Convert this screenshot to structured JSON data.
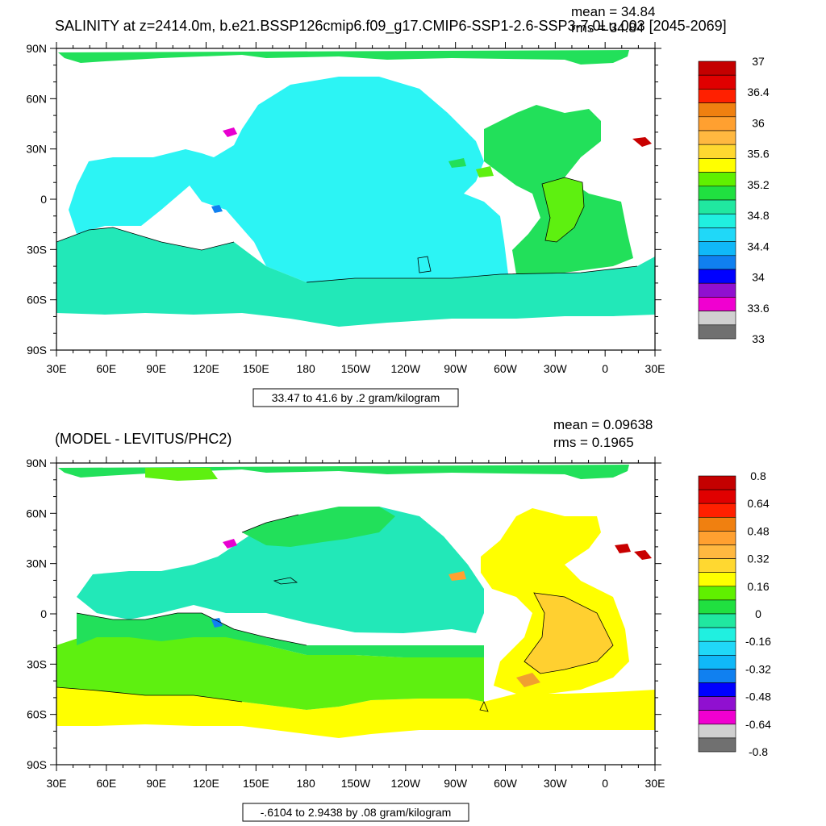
{
  "panels": [
    {
      "title": "SALINITY at z=2414.0m, b.e21.BSSP126cmip6.f09_g17.CMIP6-SSP1-2.6-SSP3-7.0Lu.003 [2045-2069]",
      "mean_label": "mean = 34.84",
      "rms_label": "rms = 34.84",
      "contour_info": "33.47 to 41.6 by .2 gram/kilogram",
      "x_ticks": [
        "30E",
        "60E",
        "90E",
        "120E",
        "150E",
        "180",
        "150W",
        "120W",
        "90W",
        "60W",
        "30W",
        "0",
        "30E"
      ],
      "y_ticks": [
        "90N",
        "60N",
        "30N",
        "0",
        "30S",
        "60S",
        "90S"
      ],
      "colorbar": {
        "labels": [
          "37",
          "36.4",
          "36",
          "35.6",
          "35.2",
          "34.8",
          "34.4",
          "34",
          "33.6",
          "33"
        ],
        "colors": [
          "#c40000",
          "#e00000",
          "#ff2000",
          "#f08010",
          "#ffa030",
          "#ffb840",
          "#ffd830",
          "#ffff00",
          "#60f000",
          "#20e040",
          "#20e8a0",
          "#20f0e0",
          "#20d8f8",
          "#10b8f8",
          "#1080f0",
          "#0000ff",
          "#9010d0",
          "#f000d0",
          "#d0d0d0",
          "#707070"
        ]
      }
    },
    {
      "title": "(MODEL - LEVITUS/PHC2)",
      "mean_label": "mean = 0.09638",
      "rms_label": "rms = 0.1965",
      "contour_info": "-.6104 to 2.9438 by .08 gram/kilogram",
      "x_ticks": [
        "30E",
        "60E",
        "90E",
        "120E",
        "150E",
        "180",
        "150W",
        "120W",
        "90W",
        "60W",
        "30W",
        "0",
        "30E"
      ],
      "y_ticks": [
        "90N",
        "60N",
        "30N",
        "0",
        "30S",
        "60S",
        "90S"
      ],
      "colorbar": {
        "labels": [
          "0.8",
          "0.64",
          "0.48",
          "0.32",
          "0.16",
          "0",
          "-0.16",
          "-0.32",
          "-0.48",
          "-0.64",
          "-0.8"
        ],
        "colors": [
          "#c40000",
          "#e00000",
          "#ff2000",
          "#f08010",
          "#ffa030",
          "#ffb840",
          "#ffd830",
          "#ffff00",
          "#60f000",
          "#20e040",
          "#20e8a0",
          "#20f0e0",
          "#20d8f8",
          "#10b8f8",
          "#1080f0",
          "#0000ff",
          "#9010d0",
          "#f000d0",
          "#d0d0d0",
          "#707070"
        ]
      }
    }
  ],
  "field_colors": {
    "top_pacific": "#2cf4f4",
    "top_south": "#22e8b8",
    "top_atlantic": "#22e05a",
    "top_atl_core": "#5ef010",
    "top_arctic": "#22e05a",
    "top_magenta": "#e800d0",
    "top_red": "#c80000",
    "top_blue": "#1080f0",
    "bot_pacific": "#22e8b8",
    "bot_green_light": "#5ef010",
    "bot_green": "#22e05a",
    "bot_yellow": "#ffff00",
    "bot_orange": "#ffd030",
    "bot_orange_dark": "#f0a030"
  }
}
